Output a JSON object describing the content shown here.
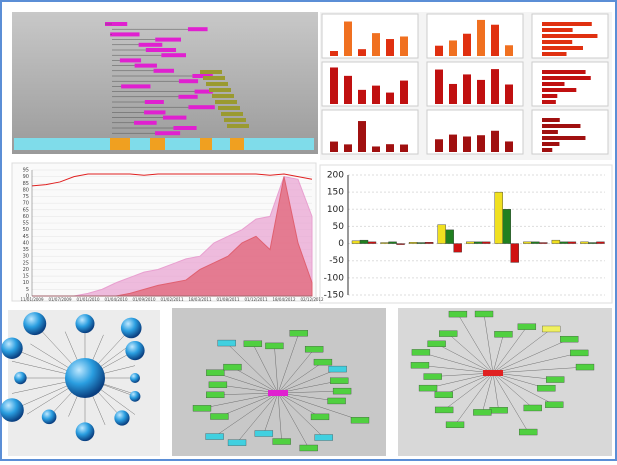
{
  "chart_data": [
    {
      "type": "area-line",
      "categories": [
        "11/01/2009",
        null,
        "01/07/2009",
        null,
        "01/01/2010",
        null,
        "01/04/2010",
        null,
        "01/09/2010",
        null,
        "01/02/2011",
        null,
        "18/03/2011",
        null,
        "01/08/2011",
        null,
        "01/12/2011",
        null,
        "18/04/2012",
        null,
        "02/12/2012"
      ],
      "series": [
        {
          "type": "area",
          "color": "#e8a0d0",
          "values": [
            0,
            0,
            0,
            0,
            2,
            5,
            10,
            14,
            18,
            20,
            24,
            28,
            30,
            40,
            45,
            50,
            58,
            60,
            90,
            88,
            60
          ]
        },
        {
          "type": "area",
          "color": "#e06070",
          "values": [
            0,
            0,
            0,
            0,
            0,
            0,
            0,
            2,
            5,
            8,
            10,
            12,
            20,
            25,
            30,
            40,
            45,
            35,
            90,
            40,
            10
          ]
        },
        {
          "type": "line",
          "color": "#e02020",
          "values": [
            83,
            84,
            86,
            90,
            92,
            92,
            92,
            92,
            91,
            92,
            92,
            92,
            92,
            92,
            92,
            92,
            92,
            91,
            92,
            90,
            88
          ]
        }
      ],
      "ylim": [
        0,
        95
      ],
      "yticks": [
        0,
        5,
        10,
        15,
        20,
        25,
        30,
        35,
        40,
        45,
        50,
        55,
        60,
        65,
        70,
        75,
        80,
        85,
        90,
        95
      ],
      "grid": true
    },
    {
      "type": "bar3d",
      "categories": [
        null,
        null,
        null,
        null,
        null,
        null,
        null,
        null,
        null
      ],
      "series": [
        {
          "color": "#f0e020",
          "values": [
            8,
            3,
            4,
            55,
            5,
            150,
            5,
            10,
            5
          ]
        },
        {
          "color": "#208020",
          "values": [
            10,
            5,
            3,
            40,
            5,
            100,
            5,
            5,
            3
          ]
        },
        {
          "color": "#d01010",
          "values": [
            5,
            -3,
            4,
            -25,
            5,
            -55,
            3,
            5,
            5
          ]
        }
      ],
      "ylim": [
        -150,
        200
      ],
      "yticks": [
        -150,
        -100,
        -50,
        0,
        50,
        100,
        150,
        200
      ],
      "grid": true
    }
  ]
}
